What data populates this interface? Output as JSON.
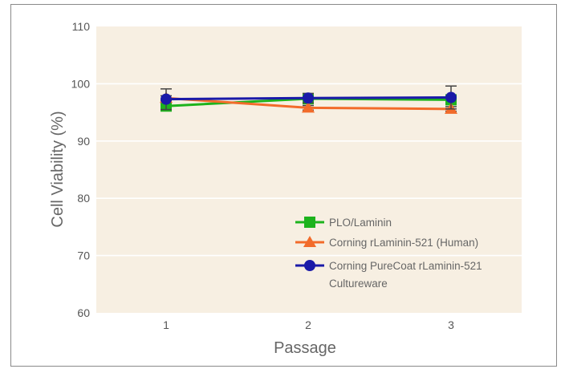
{
  "chart_data": {
    "type": "line",
    "title": "",
    "xlabel": "Passage",
    "ylabel": "Cell Viability (%)",
    "x": [
      1,
      2,
      3
    ],
    "x_tick_labels": [
      "1",
      "2",
      "3"
    ],
    "y_ticks": [
      60,
      70,
      80,
      90,
      100,
      110
    ],
    "ylim": [
      60,
      110
    ],
    "grid": "horizontal",
    "legend_position": "bottom-right",
    "plot_background": "#f7efe2",
    "series": [
      {
        "name": "PLO/Laminin",
        "values": [
          96.1,
          97.4,
          97.2
        ],
        "error": [
          0.8,
          0.9,
          0.8
        ],
        "marker": "square",
        "color": "#1db31d"
      },
      {
        "name": "Corning rLaminin-521 (Human)",
        "values": [
          97.5,
          95.8,
          95.6
        ],
        "error": [
          0.4,
          0.4,
          0.4
        ],
        "marker": "triangle",
        "color": "#f26b2a"
      },
      {
        "name": "Corning PureCoat rLaminin-521 Cultureware",
        "legend_lines": [
          "Corning PureCoat rLaminin-521",
          "Cultureware"
        ],
        "values": [
          97.3,
          97.5,
          97.6
        ],
        "error": [
          1.8,
          0.8,
          2.0
        ],
        "marker": "circle",
        "color": "#1a1aa8"
      }
    ]
  }
}
